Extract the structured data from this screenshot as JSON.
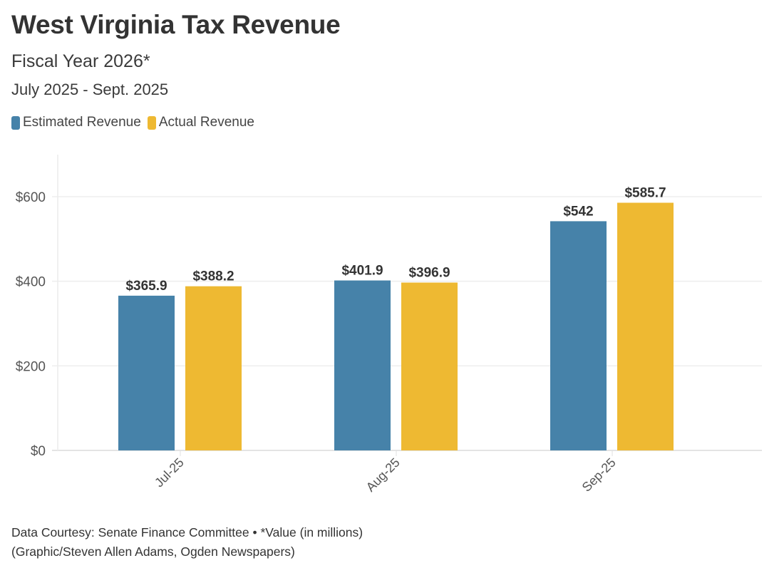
{
  "header": {
    "title": "West Virginia Tax Revenue",
    "subtitle": "Fiscal Year 2026*",
    "date_range": "July 2025 - Sept. 2025"
  },
  "legend": [
    {
      "label": "Estimated Revenue",
      "color": "#4682a9"
    },
    {
      "label": "Actual Revenue",
      "color": "#eeb932"
    }
  ],
  "footer": {
    "line1": "Data Courtesy: Senate Finance Committee • *Value (in millions)",
    "line2": "(Graphic/Steven Allen Adams, Ogden Newspapers)"
  },
  "chart_data": {
    "type": "bar",
    "title": "West Virginia Tax Revenue",
    "subtitle": "Fiscal Year 2026* — July 2025 - Sept. 2025",
    "xlabel": "",
    "ylabel": "",
    "unit_note": "Value (in millions)",
    "categories": [
      "Jul-25",
      "Aug-25",
      "Sep-25"
    ],
    "series": [
      {
        "name": "Estimated Revenue",
        "color": "#4682a9",
        "values": [
          365.9,
          401.9,
          542
        ],
        "labels": [
          "$365.9",
          "$401.9",
          "$542"
        ]
      },
      {
        "name": "Actual Revenue",
        "color": "#eeb932",
        "values": [
          388.2,
          396.9,
          585.7
        ],
        "labels": [
          "$388.2",
          "$396.9",
          "$585.7"
        ]
      }
    ],
    "yticks": [
      0,
      200,
      400,
      600
    ],
    "ytick_labels": [
      "$0",
      "$200",
      "$400",
      "$600"
    ],
    "ylim": [
      0,
      700
    ],
    "grid": "horizontal",
    "legend_position": "top-left"
  }
}
